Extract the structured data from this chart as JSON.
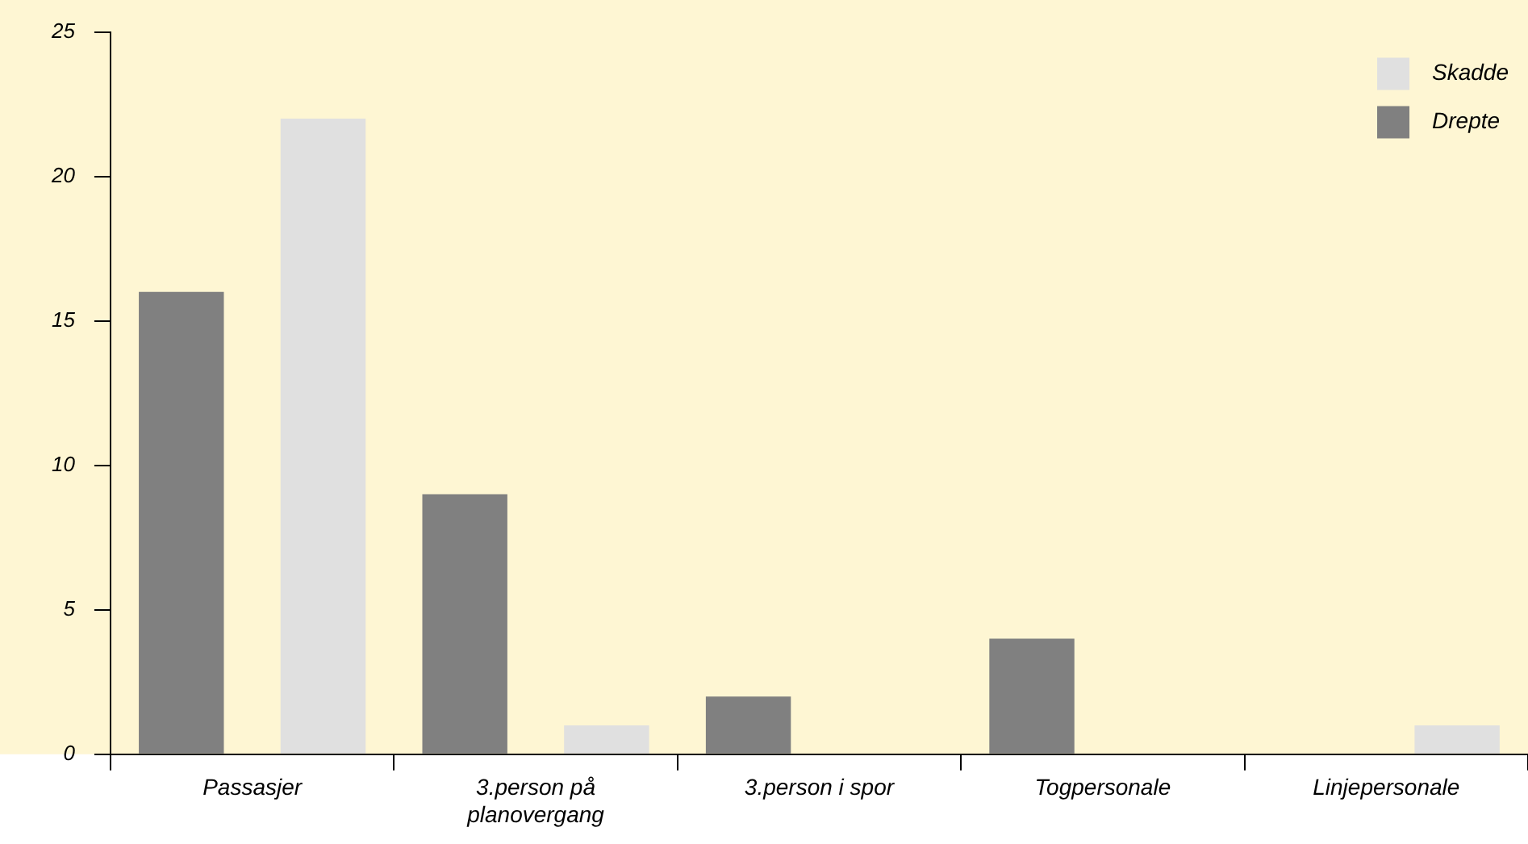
{
  "chart_data": {
    "type": "bar",
    "categories": [
      "Passasjer",
      "3.person på planovergang",
      "3.person i spor",
      "Togpersonale",
      "Linjepersonale"
    ],
    "series": [
      {
        "name": "Drepte",
        "color": "#808080",
        "values": [
          16,
          9,
          2,
          4,
          0
        ]
      },
      {
        "name": "Skadde",
        "color": "#e0e0e0",
        "values": [
          22,
          1,
          0,
          0,
          1
        ]
      }
    ],
    "ylim": [
      0,
      25
    ],
    "yticks": [
      0,
      5,
      10,
      15,
      20,
      25
    ],
    "grid": false,
    "legend": "top right"
  }
}
